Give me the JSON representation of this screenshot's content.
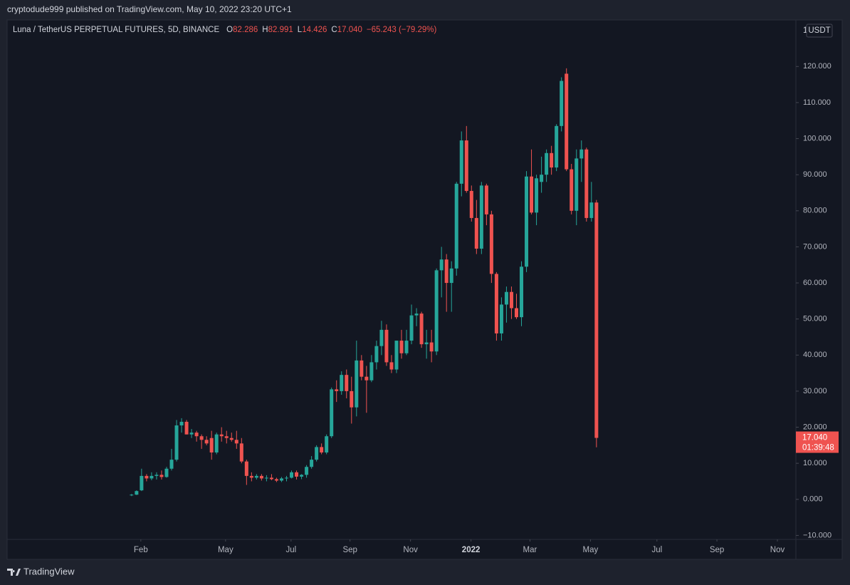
{
  "chart_data": {
    "type": "candlestick",
    "header": "cryptodude999 published on TradingView.com, May 10, 2022 23:20 UTC+1",
    "title": "Luna / TetherUS PERPETUAL FUTURES, 5D, BINANCE",
    "ohlc": [
      {
        "key": "O",
        "text": "82.286"
      },
      {
        "key": "H",
        "text": "82.991"
      },
      {
        "key": "L",
        "text": "14.426"
      },
      {
        "key": "C",
        "text": "17.040"
      }
    ],
    "change": "−65.243 (−79.29%)",
    "axis_scale": "1",
    "axis_unit": "USDT",
    "last_price_label": "17.040",
    "countdown": "01:39:48",
    "brand": "TradingView",
    "up_color": "#26a69a",
    "down_color": "#ef5350",
    "ylim": [
      -11.1,
      132.9
    ],
    "yticks": [
      {
        "value": -10,
        "label": "−10.000"
      },
      {
        "value": 0,
        "label": "0.000"
      },
      {
        "value": 10,
        "label": "10.000"
      },
      {
        "value": 20,
        "label": "20.000"
      },
      {
        "value": 30,
        "label": "30.000"
      },
      {
        "value": 40,
        "label": "40.000"
      },
      {
        "value": 50,
        "label": "50.000"
      },
      {
        "value": 60,
        "label": "60.000"
      },
      {
        "value": 70,
        "label": "70.000"
      },
      {
        "value": 80,
        "label": "80.000"
      },
      {
        "value": 90,
        "label": "90.000"
      },
      {
        "value": 100,
        "label": "100.000"
      },
      {
        "value": 110,
        "label": "110.000"
      },
      {
        "value": 120,
        "label": "120.000"
      }
    ],
    "xlim": [
      -24.9,
      132.9
    ],
    "xticks": [
      {
        "value": 1.85,
        "label": "Feb"
      },
      {
        "value": 18.8,
        "label": "May"
      },
      {
        "value": 31.9,
        "label": "Jul"
      },
      {
        "value": 43.7,
        "label": "Sep"
      },
      {
        "value": 55.8,
        "label": "Nov"
      },
      {
        "value": 67.9,
        "label": "2022"
      },
      {
        "value": 79.7,
        "label": "Mar"
      },
      {
        "value": 91.8,
        "label": "May"
      },
      {
        "value": 105.1,
        "label": "Jul"
      },
      {
        "value": 117.1,
        "label": "Sep"
      },
      {
        "value": 129.2,
        "label": "Nov"
      }
    ],
    "candles": [
      {
        "open": 1.1,
        "high": 1.5,
        "low": 0.9,
        "close": 1.3
      },
      {
        "open": 1.3,
        "high": 2.5,
        "low": 1.2,
        "close": 2.3
      },
      {
        "open": 2.5,
        "high": 8.5,
        "low": 2.3,
        "close": 6.5
      },
      {
        "open": 6.5,
        "high": 7,
        "low": 5,
        "close": 5.8
      },
      {
        "open": 5.8,
        "high": 7.5,
        "low": 5.3,
        "close": 6.5
      },
      {
        "open": 6.5,
        "high": 7.5,
        "low": 5.5,
        "close": 6.8
      },
      {
        "open": 6.8,
        "high": 8,
        "low": 5.5,
        "close": 6.2
      },
      {
        "open": 6.2,
        "high": 9,
        "low": 6,
        "close": 8.5
      },
      {
        "open": 8.5,
        "high": 14,
        "low": 8,
        "close": 11
      },
      {
        "open": 11,
        "high": 22,
        "low": 10.5,
        "close": 20.5
      },
      {
        "open": 20.5,
        "high": 22.5,
        "low": 18.5,
        "close": 21.5
      },
      {
        "open": 21.5,
        "high": 22,
        "low": 18,
        "close": 18
      },
      {
        "open": 18,
        "high": 19.5,
        "low": 17,
        "close": 18.5
      },
      {
        "open": 18.5,
        "high": 19,
        "low": 16,
        "close": 17.5
      },
      {
        "open": 17.5,
        "high": 18,
        "low": 14,
        "close": 16.5
      },
      {
        "open": 16.5,
        "high": 17.5,
        "low": 15,
        "close": 15.5
      },
      {
        "open": 17,
        "high": 19,
        "low": 11,
        "close": 13
      },
      {
        "open": 13,
        "high": 18.5,
        "low": 12.5,
        "close": 18
      },
      {
        "open": 18,
        "high": 20,
        "low": 16,
        "close": 17.5
      },
      {
        "open": 17.5,
        "high": 19,
        "low": 15.5,
        "close": 17
      },
      {
        "open": 17,
        "high": 18.5,
        "low": 16,
        "close": 16.5
      },
      {
        "open": 16.5,
        "high": 19,
        "low": 14,
        "close": 15.5
      },
      {
        "open": 15.5,
        "high": 17,
        "low": 10,
        "close": 10.5
      },
      {
        "open": 10.5,
        "high": 11,
        "low": 4,
        "close": 6.5
      },
      {
        "open": 6.5,
        "high": 7.5,
        "low": 5,
        "close": 6
      },
      {
        "open": 6,
        "high": 7,
        "low": 5.5,
        "close": 6.5
      },
      {
        "open": 6.5,
        "high": 7,
        "low": 5.2,
        "close": 5.8
      },
      {
        "open": 5.8,
        "high": 6.7,
        "low": 5,
        "close": 6
      },
      {
        "open": 6,
        "high": 7,
        "low": 5.3,
        "close": 5.6
      },
      {
        "open": 5.6,
        "high": 6,
        "low": 4.8,
        "close": 5.2
      },
      {
        "open": 5.2,
        "high": 6.2,
        "low": 4.8,
        "close": 5.8
      },
      {
        "open": 5.8,
        "high": 6.5,
        "low": 5,
        "close": 6
      },
      {
        "open": 6,
        "high": 8,
        "low": 5.8,
        "close": 7.5
      },
      {
        "open": 7.5,
        "high": 8,
        "low": 5.5,
        "close": 6.3
      },
      {
        "open": 6.3,
        "high": 7,
        "low": 5.6,
        "close": 6.8
      },
      {
        "open": 6.8,
        "high": 9.5,
        "low": 6,
        "close": 9
      },
      {
        "open": 9,
        "high": 12,
        "low": 8.5,
        "close": 11
      },
      {
        "open": 11,
        "high": 15,
        "low": 10.5,
        "close": 14.5
      },
      {
        "open": 14.5,
        "high": 15.5,
        "low": 12.5,
        "close": 13
      },
      {
        "open": 13,
        "high": 18,
        "low": 12.5,
        "close": 17.5
      },
      {
        "open": 17.5,
        "high": 31,
        "low": 17,
        "close": 30.5
      },
      {
        "open": 30.5,
        "high": 33,
        "low": 27,
        "close": 30
      },
      {
        "open": 30,
        "high": 35.5,
        "low": 29,
        "close": 34.5
      },
      {
        "open": 34.5,
        "high": 36,
        "low": 28,
        "close": 30
      },
      {
        "open": 30,
        "high": 34,
        "low": 21,
        "close": 25.5
      },
      {
        "open": 25.5,
        "high": 44,
        "low": 23,
        "close": 38.5
      },
      {
        "open": 38.5,
        "high": 40,
        "low": 33,
        "close": 34
      },
      {
        "open": 34,
        "high": 37,
        "low": 24,
        "close": 33
      },
      {
        "open": 33,
        "high": 40,
        "low": 32.5,
        "close": 38
      },
      {
        "open": 38,
        "high": 44,
        "low": 36,
        "close": 42.5
      },
      {
        "open": 42.5,
        "high": 49.5,
        "low": 40,
        "close": 47
      },
      {
        "open": 47,
        "high": 48.5,
        "low": 37,
        "close": 38
      },
      {
        "open": 38,
        "high": 40,
        "low": 35,
        "close": 36
      },
      {
        "open": 36,
        "high": 44,
        "low": 35,
        "close": 44
      },
      {
        "open": 44,
        "high": 47,
        "low": 39,
        "close": 40.5
      },
      {
        "open": 40.5,
        "high": 47,
        "low": 40,
        "close": 44
      },
      {
        "open": 44,
        "high": 54,
        "low": 43,
        "close": 51
      },
      {
        "open": 51,
        "high": 53,
        "low": 48,
        "close": 51.5
      },
      {
        "open": 51.5,
        "high": 52,
        "low": 42,
        "close": 43
      },
      {
        "open": 43,
        "high": 47,
        "low": 39,
        "close": 43.5
      },
      {
        "open": 43.5,
        "high": 47,
        "low": 38,
        "close": 41
      },
      {
        "open": 41,
        "high": 64,
        "low": 40,
        "close": 63.5
      },
      {
        "open": 63.5,
        "high": 70,
        "low": 56,
        "close": 66.5
      },
      {
        "open": 66.5,
        "high": 68,
        "low": 52,
        "close": 60
      },
      {
        "open": 60,
        "high": 66,
        "low": 52,
        "close": 64
      },
      {
        "open": 64,
        "high": 88,
        "low": 62,
        "close": 87.5
      },
      {
        "open": 87.5,
        "high": 102,
        "low": 84,
        "close": 99.5
      },
      {
        "open": 99.5,
        "high": 103.5,
        "low": 85,
        "close": 85.5
      },
      {
        "open": 85.5,
        "high": 87,
        "low": 77,
        "close": 78
      },
      {
        "open": 78,
        "high": 83,
        "low": 68,
        "close": 69.5
      },
      {
        "open": 69.5,
        "high": 88,
        "low": 68,
        "close": 87
      },
      {
        "open": 87,
        "high": 87.5,
        "low": 76,
        "close": 79
      },
      {
        "open": 79,
        "high": 80,
        "low": 60,
        "close": 62.5
      },
      {
        "open": 62.5,
        "high": 63,
        "low": 44,
        "close": 46
      },
      {
        "open": 46,
        "high": 56,
        "low": 44,
        "close": 54
      },
      {
        "open": 54,
        "high": 59,
        "low": 49,
        "close": 57.5
      },
      {
        "open": 57.5,
        "high": 59,
        "low": 50,
        "close": 53
      },
      {
        "open": 53,
        "high": 57,
        "low": 50,
        "close": 50.5
      },
      {
        "open": 50.5,
        "high": 66,
        "low": 48,
        "close": 64.5
      },
      {
        "open": 64.5,
        "high": 91,
        "low": 63,
        "close": 89.5
      },
      {
        "open": 89.5,
        "high": 97,
        "low": 79,
        "close": 79.5
      },
      {
        "open": 79.5,
        "high": 90,
        "low": 76,
        "close": 89
      },
      {
        "open": 88,
        "high": 95,
        "low": 85,
        "close": 90
      },
      {
        "open": 90,
        "high": 97,
        "low": 88,
        "close": 96
      },
      {
        "open": 96,
        "high": 98,
        "low": 90,
        "close": 92
      },
      {
        "open": 92,
        "high": 104,
        "low": 91,
        "close": 103.5
      },
      {
        "open": 103.5,
        "high": 117,
        "low": 102,
        "close": 116
      },
      {
        "open": 118,
        "high": 119.5,
        "low": 91,
        "close": 91.5
      },
      {
        "open": 91.5,
        "high": 93,
        "low": 79,
        "close": 80
      },
      {
        "open": 80,
        "high": 97,
        "low": 76,
        "close": 94.5
      },
      {
        "open": 94.5,
        "high": 99.5,
        "low": 88,
        "close": 97
      },
      {
        "open": 97,
        "high": 97.5,
        "low": 77,
        "close": 78
      },
      {
        "open": 78,
        "high": 88,
        "low": 77,
        "close": 82.3
      },
      {
        "open": 82.286,
        "high": 82.991,
        "low": 14.426,
        "close": 17.04
      }
    ]
  }
}
